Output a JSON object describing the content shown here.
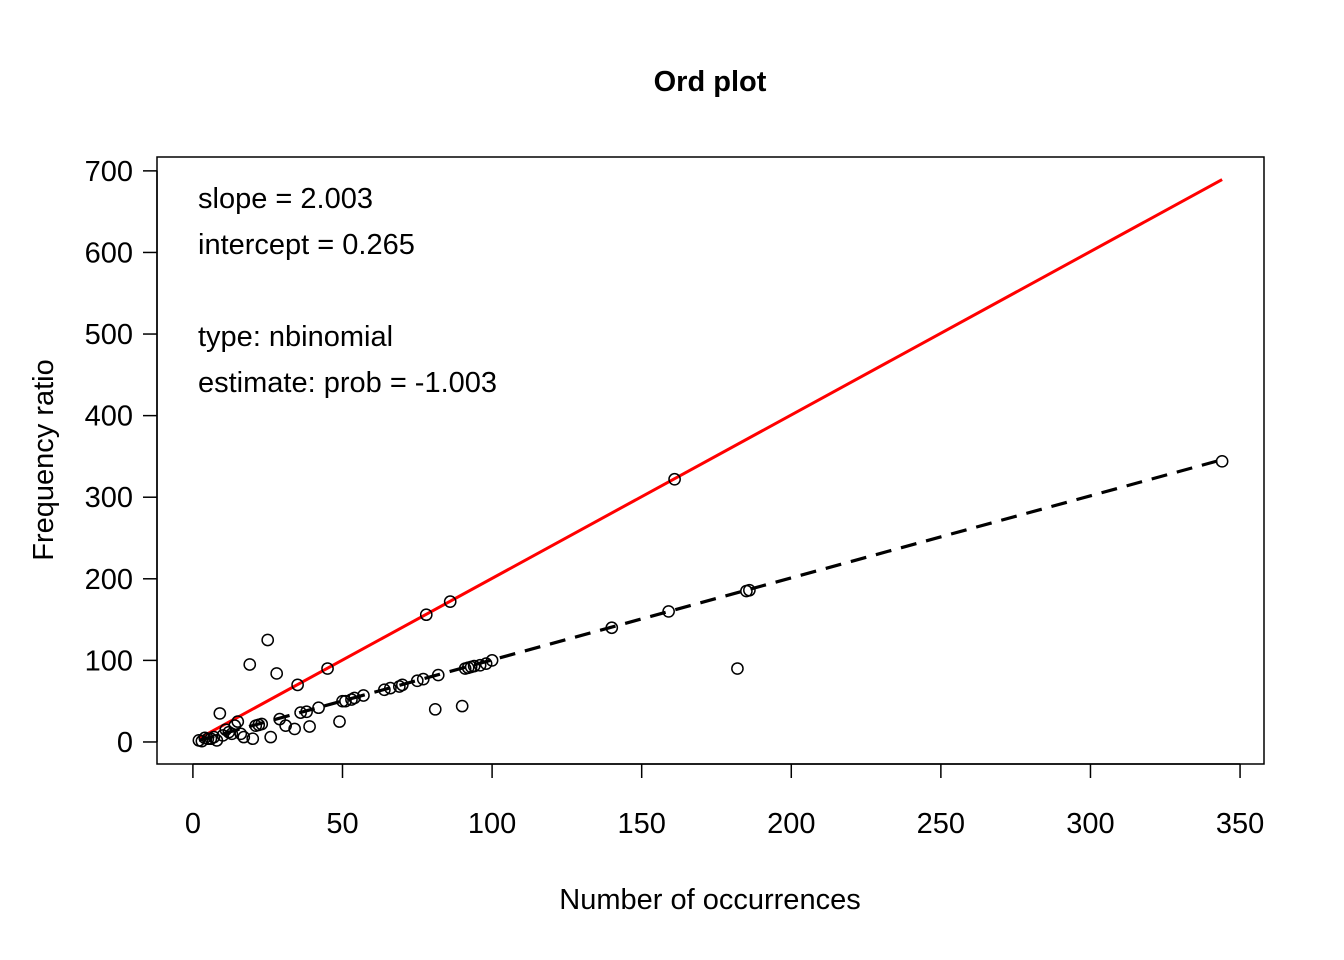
{
  "chart_data": {
    "type": "scatter",
    "title": "Ord plot",
    "xlabel": "Number of occurrences",
    "ylabel": "Frequency ratio",
    "xlim": [
      -12,
      358
    ],
    "ylim": [
      -27,
      717
    ],
    "xticks": [
      0,
      50,
      100,
      150,
      200,
      250,
      300,
      350
    ],
    "yticks": [
      0,
      100,
      200,
      300,
      400,
      500,
      600,
      700
    ],
    "grid": false,
    "legend": "none",
    "annotations": [
      "slope = 2.003",
      "intercept = 0.265",
      "type: nbinomial",
      "estimate: prob = -1.003"
    ],
    "points": {
      "x": [
        2,
        3,
        4,
        5,
        6,
        7,
        8,
        9,
        10,
        11,
        12,
        13,
        14,
        15,
        16,
        17,
        19,
        20,
        21,
        22,
        23,
        25,
        26,
        28,
        29,
        31,
        34,
        35,
        36,
        38,
        39,
        42,
        45,
        49,
        50,
        51,
        53,
        54,
        57,
        64,
        66,
        69,
        70,
        75,
        77,
        78,
        81,
        82,
        86,
        90,
        91,
        92,
        93,
        94,
        96,
        98,
        100,
        140,
        159,
        161,
        182,
        185,
        186,
        344
      ],
      "y": [
        2,
        1,
        5,
        4,
        4,
        6,
        2,
        35,
        8,
        15,
        12,
        10,
        20,
        25,
        10,
        6,
        95,
        4,
        20,
        21,
        22,
        125,
        6,
        84,
        28,
        20,
        16,
        70,
        36,
        37,
        19,
        42,
        90,
        25,
        50,
        50,
        52,
        54,
        57,
        64,
        66,
        68,
        70,
        75,
        77,
        156,
        40,
        82,
        172,
        44,
        90,
        91,
        92,
        93,
        94,
        96,
        100,
        140,
        160,
        322,
        90,
        185,
        186,
        344
      ]
    },
    "series": [
      {
        "style": "solid",
        "color": "#ff0000",
        "x": [
          2,
          344
        ],
        "y": [
          4.271,
          689.297
        ]
      },
      {
        "style": "dashed",
        "color": "#000000",
        "x": [
          2,
          344
        ],
        "y": [
          2,
          346
        ]
      }
    ]
  }
}
